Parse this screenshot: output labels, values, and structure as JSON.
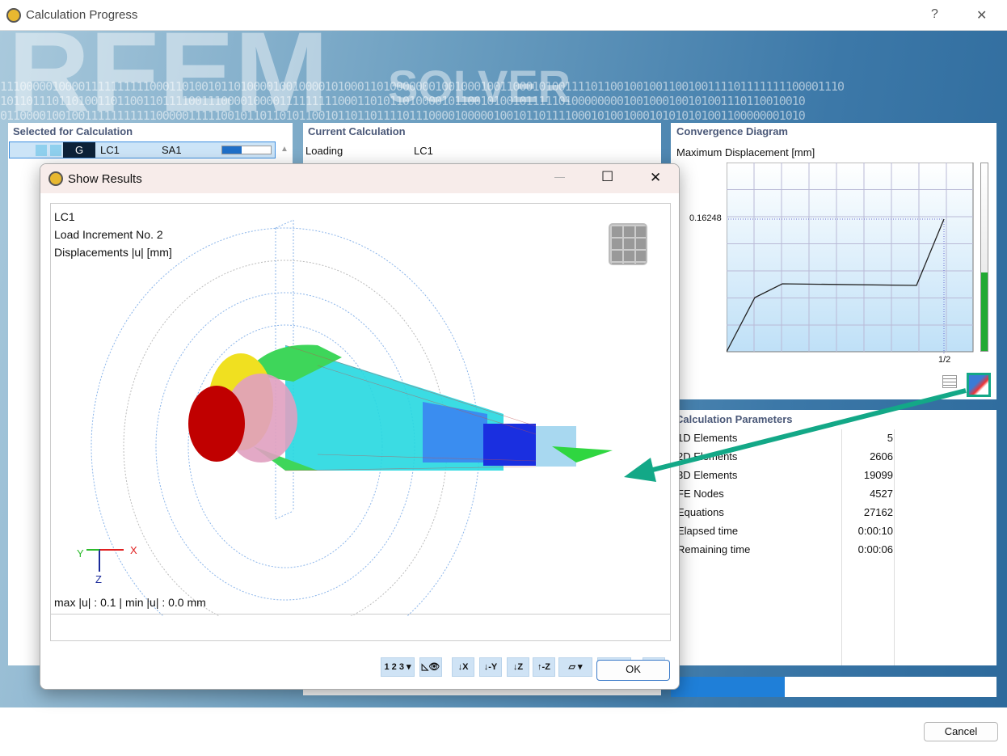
{
  "window": {
    "title": "Calculation Progress",
    "help": "?",
    "close": "✕"
  },
  "brand": {
    "big": "RFEM",
    "solver": "SOLVER",
    "binary1": "1110000010000111111111100011010010110100001001000010100011010000000100100010011000101001111011001001001100100111101111111100001110",
    "binary2": "1011011101101001101100110111100111000010000111111111000110101101000010110010100101111101000000001001000100101001110110010010",
    "binary3": "0110000100100111111111110000011111001011011010110010110110111101110000100000100101101111000101001000101010101001100000001010"
  },
  "selected": {
    "title": "Selected for Calculation",
    "row": {
      "type": "G",
      "loading": "LC1",
      "analysis": "SA1",
      "progress": 0.4
    }
  },
  "current": {
    "title": "Current Calculation",
    "rows": [
      {
        "label": "Loading",
        "value": "LC1"
      }
    ]
  },
  "convergence": {
    "title": "Convergence Diagram",
    "ylabel": "Maximum Displacement [mm]",
    "y_tick": "0.16248",
    "x_tick": "1/2",
    "level": 0.42,
    "accent": "#22aa33"
  },
  "params": {
    "title": "Calculation Parameters",
    "rows": [
      {
        "label": "1D Elements",
        "value": "5"
      },
      {
        "label": "2D Elements",
        "value": "2606"
      },
      {
        "label": "3D Elements",
        "value": "19099"
      },
      {
        "label": "FE Nodes",
        "value": "4527"
      },
      {
        "label": "Equations",
        "value": "27162"
      },
      {
        "label": "Elapsed time",
        "value": "0:00:10"
      },
      {
        "label": "Remaining time",
        "value": "0:00:06"
      }
    ]
  },
  "overall_progress": 0.35,
  "footer": {
    "cancel": "Cancel"
  },
  "dialog": {
    "title": "Show Results",
    "minimize": "—",
    "maximize": "☐",
    "close": "✕",
    "lines": [
      "LC1",
      "Load Increment No. 2",
      "Displacements |u| [mm]"
    ],
    "footer_text": "max |u| : 0.1 | min |u| : 0.0 mm",
    "axes": {
      "x": "X",
      "y": "Y",
      "z": "Z"
    },
    "ok": "OK",
    "toolbar": [
      {
        "icon": "numbering-icon",
        "label": "1 2 3 ▾"
      },
      {
        "icon": "view-settings-icon",
        "label": "◺👁"
      },
      {
        "icon": "view-x-icon",
        "label": "↓X"
      },
      {
        "icon": "view-minus-y-icon",
        "label": "↓-Y"
      },
      {
        "icon": "view-z-icon",
        "label": "↓Z"
      },
      {
        "icon": "view-minus-z-icon",
        "label": "↑-Z"
      },
      {
        "icon": "render-mode-icon",
        "label": "▱ ▾"
      },
      {
        "icon": "wireframe-icon",
        "label": "◫ ▾"
      },
      {
        "icon": "close-results-icon",
        "label": "🔍✕"
      }
    ]
  },
  "annotation_color": "#13a887"
}
